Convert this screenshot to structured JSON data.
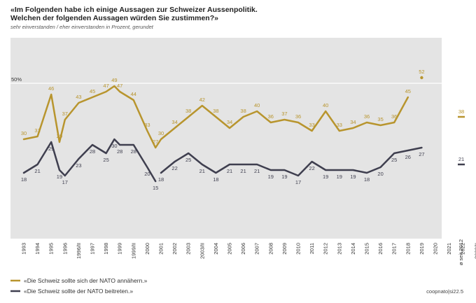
{
  "chart_data": {
    "type": "line",
    "title_lines": [
      "«Im Folgenden habe ich einige Aussagen zur Schweizer Aussenpolitik.",
      "Welchen der folgenden Aussagen würden Sie zustimmen?»"
    ],
    "subtitle": "sehr einverstanden / eher einverstanden in Prozent, gerundet",
    "credit": "coopnato|si22.5",
    "avg_label": "ø seit 2012",
    "reference_label": "50%",
    "reference_value": 50,
    "ylim": [
      0,
      65
    ],
    "grid": false,
    "legend_position": "bottom-left",
    "x_labels": [
      "1993",
      "1994",
      "1995",
      "1996",
      "1996/II",
      "1997",
      "1998",
      "1999",
      "1999/II",
      "2000",
      "2001",
      "2002",
      "2003",
      "2003/II",
      "2004",
      "2005",
      "2006",
      "2007",
      "2008",
      "2009",
      "2010",
      "2011",
      "2012",
      "2013",
      "2014",
      "2015",
      "2016",
      "2017",
      "2018",
      "2019",
      "2020",
      "2021",
      "2022",
      "2022/II"
    ],
    "x_label_positions": [
      0,
      1,
      2,
      3,
      4,
      5,
      6,
      7,
      8,
      9,
      10,
      11,
      12,
      13,
      14,
      15,
      16,
      17,
      18,
      19,
      20,
      21,
      22,
      23,
      24,
      25,
      26,
      27,
      28,
      29,
      30,
      31,
      32,
      33
    ],
    "series": [
      {
        "name": "«Die Schweiz sollte sich der NATO annähern.»",
        "color": "#b8952e",
        "segments": [
          [
            [
              0,
              30
            ],
            [
              1,
              31
            ],
            [
              2,
              46
            ],
            [
              2.6,
              29
            ],
            [
              3,
              37
            ],
            [
              4,
              43
            ],
            [
              5,
              45
            ],
            [
              6,
              47
            ],
            [
              6.6,
              49
            ],
            [
              7,
              47
            ],
            [
              8,
              44
            ],
            [
              9,
              33
            ],
            [
              9.6,
              27
            ],
            [
              10,
              30
            ],
            [
              11,
              34
            ],
            [
              12,
              38
            ],
            [
              13,
              42
            ],
            [
              14,
              38
            ],
            [
              15,
              34
            ],
            [
              16,
              38
            ],
            [
              17,
              40
            ],
            [
              18,
              36
            ],
            [
              19,
              37
            ],
            [
              20,
              36
            ],
            [
              21,
              33
            ],
            [
              22,
              40
            ],
            [
              23,
              33
            ],
            [
              24,
              34
            ],
            [
              25,
              36
            ],
            [
              26,
              35
            ],
            [
              27,
              36
            ],
            [
              28,
              45
            ]
          ]
        ],
        "isolated": [
          [
            29,
            52
          ]
        ],
        "labels": [
          {
            "x": 0,
            "y": 30,
            "text": "30"
          },
          {
            "x": 1,
            "y": 31,
            "text": "31"
          },
          {
            "x": 2,
            "y": 46,
            "text": "46"
          },
          {
            "x": 2.6,
            "y": 29,
            "text": "29"
          },
          {
            "x": 3,
            "y": 37,
            "text": "37"
          },
          {
            "x": 4,
            "y": 43,
            "text": "43"
          },
          {
            "x": 5,
            "y": 45,
            "text": "45"
          },
          {
            "x": 6,
            "y": 47,
            "text": "47"
          },
          {
            "x": 6.6,
            "y": 49,
            "text": "49"
          },
          {
            "x": 7,
            "y": 47,
            "text": "47"
          },
          {
            "x": 8,
            "y": 44,
            "text": "44"
          },
          {
            "x": 9,
            "y": 33,
            "text": "33"
          },
          {
            "x": 9.6,
            "y": 27,
            "text": "27"
          },
          {
            "x": 10,
            "y": 30,
            "text": "30"
          },
          {
            "x": 11,
            "y": 34,
            "text": "34"
          },
          {
            "x": 12,
            "y": 38,
            "text": "38"
          },
          {
            "x": 13,
            "y": 42,
            "text": "42"
          },
          {
            "x": 14,
            "y": 38,
            "text": "38"
          },
          {
            "x": 15,
            "y": 34,
            "text": "34"
          },
          {
            "x": 16,
            "y": 38,
            "text": "38"
          },
          {
            "x": 17,
            "y": 40,
            "text": "40"
          },
          {
            "x": 18,
            "y": 36,
            "text": "36"
          },
          {
            "x": 19,
            "y": 37,
            "text": "37"
          },
          {
            "x": 20,
            "y": 36,
            "text": "36"
          },
          {
            "x": 21,
            "y": 33,
            "text": "33"
          },
          {
            "x": 22,
            "y": 40,
            "text": "40"
          },
          {
            "x": 23,
            "y": 33,
            "text": "33"
          },
          {
            "x": 24,
            "y": 34,
            "text": "34"
          },
          {
            "x": 25,
            "y": 36,
            "text": "36"
          },
          {
            "x": 26,
            "y": 35,
            "text": "35"
          },
          {
            "x": 27,
            "y": 36,
            "text": "36"
          },
          {
            "x": 28,
            "y": 45,
            "text": "45"
          },
          {
            "x": 29,
            "y": 52,
            "text": "52"
          }
        ],
        "average": "38",
        "average_value": 38
      },
      {
        "name": "«Die Schweiz sollte der NATO beitreten.»",
        "color": "#3f3f4f",
        "segments": [
          [
            [
              0,
              18
            ],
            [
              1,
              21
            ],
            [
              2,
              29
            ],
            [
              2.6,
              19
            ],
            [
              3,
              17
            ],
            [
              4,
              23
            ],
            [
              5,
              28
            ],
            [
              6,
              25
            ],
            [
              6.6,
              30
            ],
            [
              7,
              28
            ],
            [
              8,
              28
            ],
            [
              9,
              20
            ],
            [
              9.6,
              15
            ]
          ],
          [
            [
              10,
              18
            ],
            [
              11,
              22
            ],
            [
              12,
              25
            ],
            [
              13,
              21
            ],
            [
              14,
              18
            ],
            [
              15,
              21
            ],
            [
              16,
              21
            ],
            [
              17,
              21
            ],
            [
              18,
              19
            ],
            [
              19,
              19
            ],
            [
              20,
              17
            ],
            [
              21,
              22
            ],
            [
              22,
              19
            ],
            [
              23,
              19
            ],
            [
              24,
              19
            ],
            [
              25,
              18
            ],
            [
              26,
              20
            ],
            [
              27,
              25
            ],
            [
              28,
              26
            ],
            [
              29,
              27
            ]
          ]
        ],
        "isolated": [],
        "labels": [
          {
            "x": 0,
            "y": 18,
            "text": "18"
          },
          {
            "x": 1,
            "y": 21,
            "text": "21"
          },
          {
            "x": 2,
            "y": 29,
            "text": "29"
          },
          {
            "x": 2.6,
            "y": 19,
            "text": "19"
          },
          {
            "x": 3,
            "y": 17,
            "text": "17"
          },
          {
            "x": 4,
            "y": 23,
            "text": "23"
          },
          {
            "x": 5,
            "y": 28,
            "text": "28"
          },
          {
            "x": 6,
            "y": 25,
            "text": "25"
          },
          {
            "x": 6.6,
            "y": 30,
            "text": "30"
          },
          {
            "x": 7,
            "y": 28,
            "text": "28"
          },
          {
            "x": 8,
            "y": 28,
            "text": "28"
          },
          {
            "x": 9,
            "y": 20,
            "text": "20"
          },
          {
            "x": 9.6,
            "y": 15,
            "text": "15"
          },
          {
            "x": 10,
            "y": 18,
            "text": "18"
          },
          {
            "x": 11,
            "y": 22,
            "text": "22"
          },
          {
            "x": 12,
            "y": 25,
            "text": "25"
          },
          {
            "x": 13,
            "y": 21,
            "text": "21"
          },
          {
            "x": 14,
            "y": 18,
            "text": "18"
          },
          {
            "x": 15,
            "y": 21,
            "text": "21"
          },
          {
            "x": 16,
            "y": 21,
            "text": "21"
          },
          {
            "x": 17,
            "y": 21,
            "text": "21"
          },
          {
            "x": 18,
            "y": 19,
            "text": "19"
          },
          {
            "x": 19,
            "y": 19,
            "text": "19"
          },
          {
            "x": 20,
            "y": 17,
            "text": "17"
          },
          {
            "x": 21,
            "y": 22,
            "text": "22"
          },
          {
            "x": 22,
            "y": 19,
            "text": "19"
          },
          {
            "x": 23,
            "y": 19,
            "text": "19"
          },
          {
            "x": 24,
            "y": 19,
            "text": "19"
          },
          {
            "x": 25,
            "y": 18,
            "text": "18"
          },
          {
            "x": 26,
            "y": 20,
            "text": "20"
          },
          {
            "x": 27,
            "y": 25,
            "text": "25"
          },
          {
            "x": 28,
            "y": 26,
            "text": "26"
          },
          {
            "x": 29,
            "y": 27,
            "text": "27"
          }
        ],
        "average": "21",
        "average_value": 21
      }
    ]
  }
}
